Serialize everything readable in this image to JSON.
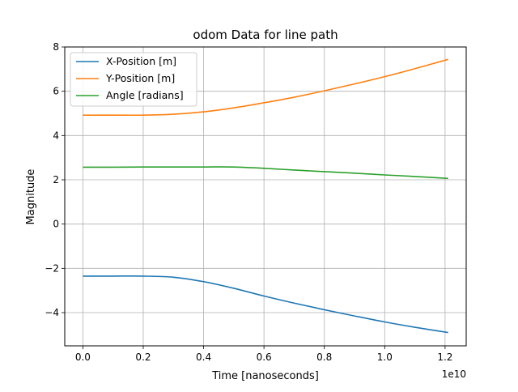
{
  "chart_data": {
    "type": "line",
    "title": "odom Data for line path",
    "xlabel": "Time [nanoseconds]",
    "ylabel": "Magnitude",
    "x_offset_text": "1e10",
    "xlim": [
      -0.06,
      1.27
    ],
    "ylim": [
      -5.5,
      8.0
    ],
    "xticks": [
      0.0,
      0.2,
      0.4,
      0.6,
      0.8,
      1.0,
      1.2
    ],
    "xtick_labels": [
      "0.0",
      "0.2",
      "0.4",
      "0.6",
      "0.8",
      "1.0",
      "1.2"
    ],
    "yticks": [
      -4,
      -2,
      0,
      2,
      4,
      6,
      8
    ],
    "ytick_labels": [
      "−4",
      "−2",
      "0",
      "2",
      "4",
      "6",
      "8"
    ],
    "grid": true,
    "legend_position": "top-left",
    "x": [
      0.0,
      0.1,
      0.2,
      0.3,
      0.4,
      0.5,
      0.6,
      0.7,
      0.8,
      0.9,
      1.0,
      1.1,
      1.21
    ],
    "series": [
      {
        "name": "X-Position [m]",
        "color": "#1f77b4",
        "values": [
          -2.35,
          -2.35,
          -2.35,
          -2.4,
          -2.6,
          -2.9,
          -3.25,
          -3.57,
          -3.87,
          -4.15,
          -4.42,
          -4.66,
          -4.9
        ]
      },
      {
        "name": "Y-Position [m]",
        "color": "#ff7f0e",
        "values": [
          4.92,
          4.92,
          4.92,
          4.96,
          5.07,
          5.25,
          5.48,
          5.73,
          6.02,
          6.33,
          6.66,
          7.02,
          7.44
        ]
      },
      {
        "name": "Angle [radians]",
        "color": "#2ca02c",
        "values": [
          2.57,
          2.57,
          2.58,
          2.58,
          2.58,
          2.58,
          2.52,
          2.44,
          2.37,
          2.3,
          2.22,
          2.15,
          2.06
        ]
      }
    ]
  }
}
